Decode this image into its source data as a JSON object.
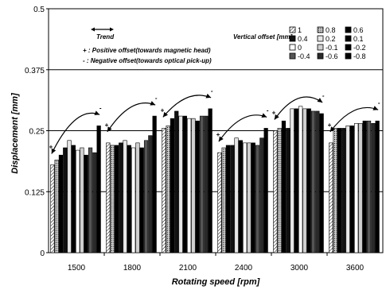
{
  "chart_data": {
    "type": "bar",
    "xlabel": "Rotating speed [rpm]",
    "ylabel": "Displacement [mm]",
    "ylim": [
      0,
      0.5
    ],
    "yticks": [
      "0",
      "0.125",
      "0.25",
      "0.375",
      "0.5"
    ],
    "ytick_values": [
      0,
      0.125,
      0.25,
      0.375,
      0.5
    ],
    "grid": "horizontal at 0.125, 0.25, 0.375",
    "categories": [
      "1500",
      "1800",
      "2100",
      "2400",
      "3000",
      "3600"
    ],
    "legend_title": "Vertical offset [mm]",
    "legend_position": "top-right",
    "series": [
      {
        "name": "1",
        "fill": "hatch",
        "values": [
          0.18,
          0.225,
          0.255,
          0.205,
          0.25,
          0.225
        ]
      },
      {
        "name": "0.8",
        "fill": "dots",
        "values": [
          0.19,
          0.22,
          0.26,
          0.215,
          0.255,
          0.255
        ]
      },
      {
        "name": "0.6",
        "fill": "#000000",
        "values": [
          0.2,
          0.22,
          0.275,
          0.22,
          0.27,
          0.255
        ]
      },
      {
        "name": "0.4",
        "fill": "#111111",
        "values": [
          0.215,
          0.225,
          0.29,
          0.22,
          0.255,
          0.255
        ]
      },
      {
        "name": "0.2",
        "fill": "#e6e6e6",
        "values": [
          0.23,
          0.23,
          0.28,
          0.235,
          0.295,
          0.26
        ]
      },
      {
        "name": "0.1",
        "fill": "#000000",
        "values": [
          0.22,
          0.22,
          0.28,
          0.23,
          0.295,
          0.26
        ]
      },
      {
        "name": "0",
        "fill": "#ffffff",
        "values": [
          0.21,
          0.215,
          0.275,
          0.225,
          0.3,
          0.265
        ]
      },
      {
        "name": "-0.1",
        "fill": "#d0d0d0",
        "values": [
          0.215,
          0.225,
          0.275,
          0.225,
          0.295,
          0.265
        ]
      },
      {
        "name": "-0.2",
        "fill": "#000000",
        "values": [
          0.2,
          0.215,
          0.27,
          0.225,
          0.295,
          0.27
        ]
      },
      {
        "name": "-0.4",
        "fill": "#555555",
        "values": [
          0.215,
          0.23,
          0.28,
          0.22,
          0.29,
          0.27
        ]
      },
      {
        "name": "-0.6",
        "fill": "#2a2a2a",
        "values": [
          0.205,
          0.24,
          0.28,
          0.235,
          0.29,
          0.265
        ]
      },
      {
        "name": "-0.8",
        "fill": "#000000",
        "values": [
          0.26,
          0.28,
          0.295,
          0.255,
          0.285,
          0.27
        ]
      }
    ],
    "annotations": {
      "trend_label": "Trend",
      "positive_note": "+ : Positive offset(towards magnetic head)",
      "negative_note": "- : Negative offset(towards optical pick-up)",
      "plus_sign": "+",
      "minus_sign": "-"
    },
    "colors": {
      "background": "#ffffff",
      "bar_stroke": "#000000",
      "gridline": "#000000"
    }
  }
}
